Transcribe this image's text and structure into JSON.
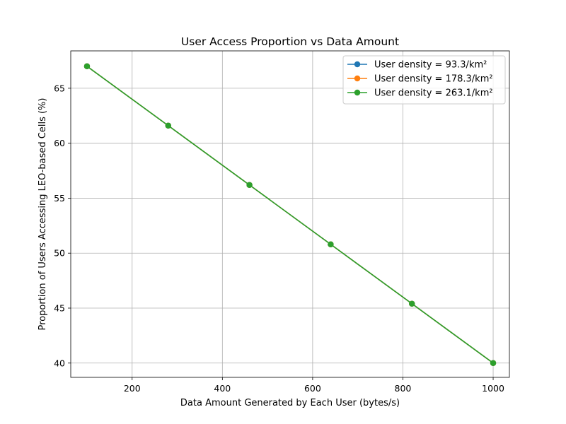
{
  "chart_data": {
    "type": "line",
    "title": "User Access Proportion vs Data Amount",
    "xlabel": "Data Amount Generated by Each User (bytes/s)",
    "ylabel": "Proportion of Users Accessing LEO-based Cells (%)",
    "xlim": [
      64,
      1036
    ],
    "ylim": [
      38.7,
      68.4
    ],
    "xticks": [
      200,
      400,
      600,
      800,
      1000
    ],
    "yticks": [
      40,
      45,
      50,
      55,
      60,
      65
    ],
    "grid": true,
    "legend_position": "top-right",
    "x": [
      100,
      280,
      460,
      640,
      820,
      1000
    ],
    "series": [
      {
        "name": "User density = 93.3/km²",
        "color": "#1f77b4",
        "values": [
          67.0,
          61.6,
          56.2,
          50.8,
          45.4,
          40.0
        ]
      },
      {
        "name": "User density = 178.3/km²",
        "color": "#ff7f0e",
        "values": [
          67.0,
          61.6,
          56.2,
          50.8,
          45.4,
          40.0
        ]
      },
      {
        "name": "User density = 263.1/km²",
        "color": "#2ca02c",
        "values": [
          67.0,
          61.6,
          56.2,
          50.8,
          45.4,
          40.0
        ]
      }
    ]
  }
}
